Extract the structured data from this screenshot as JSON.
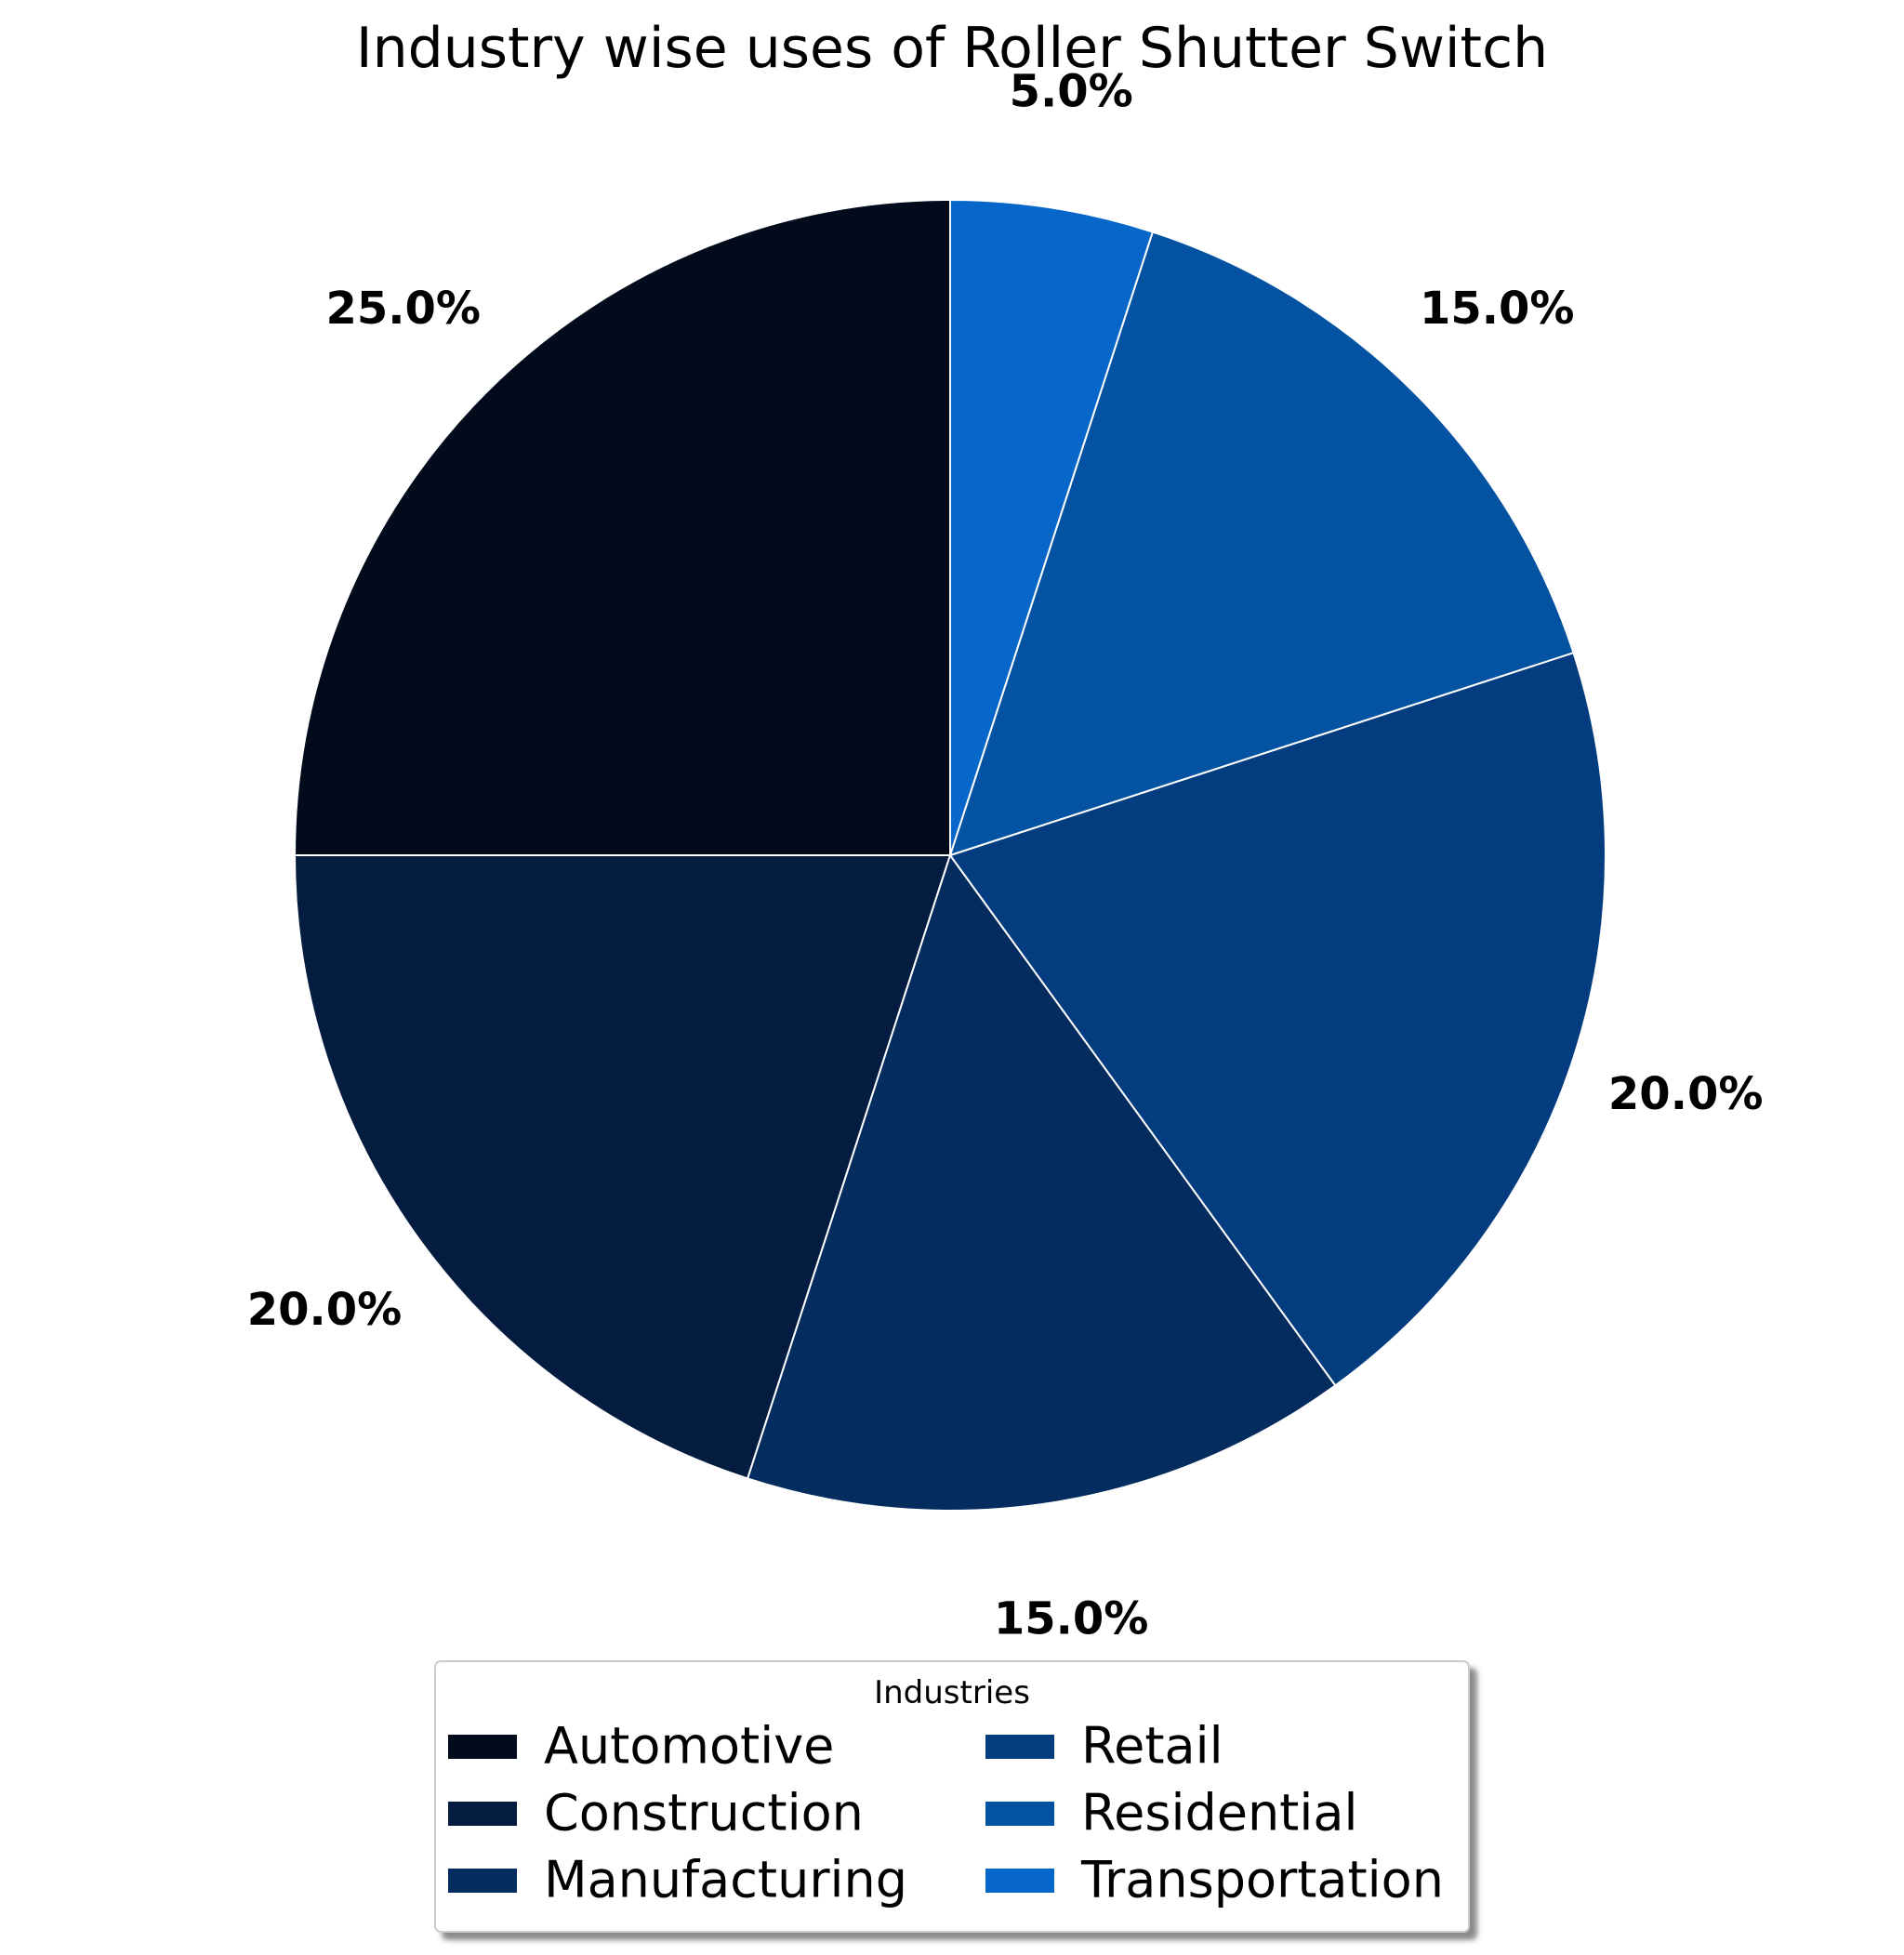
{
  "chart_data": {
    "type": "pie",
    "title": "Industry wise uses of Roller Shutter Switch",
    "categories": [
      "Automotive",
      "Construction",
      "Manufacturing",
      "Retail",
      "Residential",
      "Transportation"
    ],
    "values": [
      25.0,
      20.0,
      15.0,
      20.0,
      15.0,
      5.0
    ],
    "labels": [
      "25.0%",
      "20.0%",
      "15.0%",
      "20.0%",
      "15.0%",
      "5.0%"
    ],
    "colors": [
      "#020b1b",
      "#041c40",
      "#042c5e",
      "#043c80",
      "#0452a2",
      "#0666c9"
    ],
    "start_angle_deg": 90,
    "direction": "counterclockwise",
    "legend": {
      "title": "Industries",
      "placement": "bottom-center",
      "columns": 2
    }
  }
}
